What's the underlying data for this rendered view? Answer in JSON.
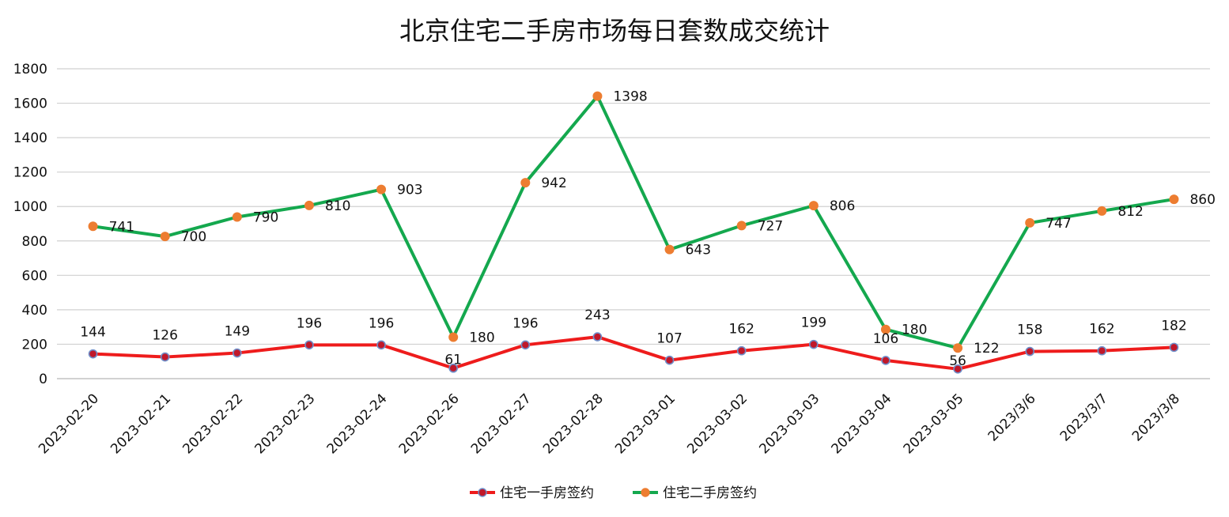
{
  "chart_data": {
    "type": "line",
    "title": "北京住宅二手房市场每日套数成交统计",
    "xlabel": "",
    "ylabel": "",
    "ylim": [
      0,
      1800
    ],
    "yticks": [
      "0",
      "200",
      "400",
      "600",
      "800",
      "1000",
      "1200",
      "1400",
      "1600",
      "1800"
    ],
    "grid": true,
    "legend_position": "bottom",
    "categories": [
      "2023-02-20",
      "2023-02-21",
      "2023-02-22",
      "2023-02-23",
      "2023-02-24",
      "2023-02-26",
      "2023-02-27",
      "2023-02-28",
      "2023-03-01",
      "2023-03-02",
      "2023-03-03",
      "2023-03-04",
      "2023-03-05",
      "2023/3/6",
      "2023/3/7",
      "2023/3/8"
    ],
    "series": [
      {
        "name": "住宅一手房签约",
        "color": "#ee1c1c",
        "marker_color": "#c0182a",
        "marker_edge": "#6e8ec9",
        "stacked": false,
        "values": [
          144,
          126,
          149,
          196,
          196,
          61,
          196,
          243,
          107,
          162,
          199,
          106,
          56,
          158,
          162,
          182
        ],
        "labels": [
          "144",
          "126",
          "149",
          "196",
          "196",
          "61",
          "196",
          "243",
          "107",
          "162",
          "199",
          "106",
          "56",
          "158",
          "162",
          "182"
        ]
      },
      {
        "name": "住宅二手房签约",
        "color": "#14a84e",
        "marker_color": "#ed7d31",
        "marker_edge": "#ed7d31",
        "stacked": true,
        "values": [
          741,
          700,
          790,
          810,
          903,
          180,
          942,
          1398,
          643,
          727,
          806,
          180,
          122,
          747,
          812,
          860
        ],
        "labels": [
          "741",
          "700",
          "790",
          "810",
          "903",
          "180",
          "942",
          "1398",
          "643",
          "727",
          "806",
          "180",
          "122",
          "747",
          "812",
          "860"
        ]
      }
    ]
  }
}
